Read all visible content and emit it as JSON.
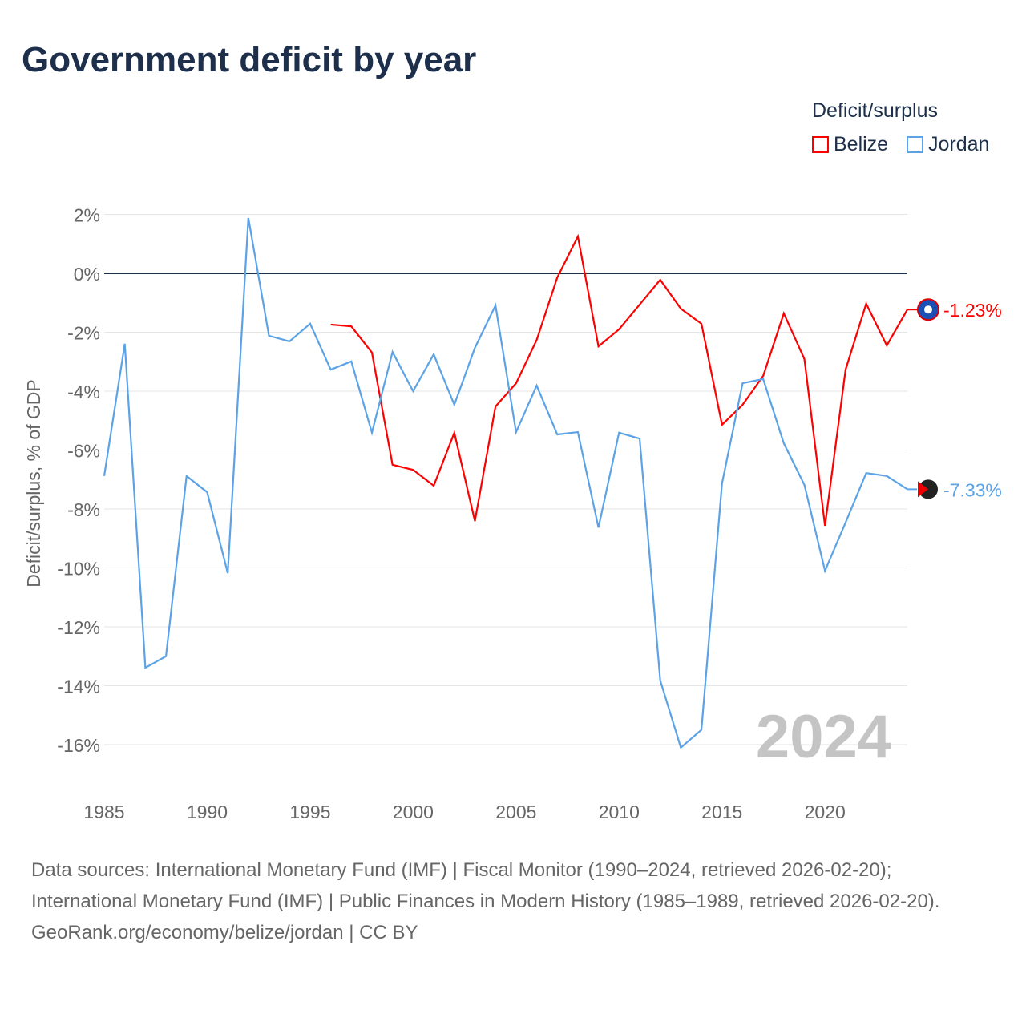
{
  "title": "Government deficit by year",
  "legend": {
    "title": "Deficit/surplus",
    "items": [
      {
        "name": "Belize",
        "color": "#ff0000"
      },
      {
        "name": "Jordan",
        "color": "#5ba3e6"
      }
    ]
  },
  "watermark_year": "2024",
  "footer": {
    "sources": "Data sources: International Monetary Fund (IMF) | Fiscal Monitor (1990–2024, retrieved 2026-02-20); International Monetary Fund (IMF) | Public Finances in Modern History (1985–1989, retrieved 2026-02-20).",
    "credit": "GeoRank.org/economy/belize/jordan | CC BY"
  },
  "chart_data": {
    "type": "line",
    "title": "Government deficit by year",
    "xlabel": "",
    "ylabel": "Deficit/surplus, % of GDP",
    "xlim": [
      1985,
      2024
    ],
    "ylim": [
      -16,
      2
    ],
    "x_ticks": [
      "1985",
      "1990",
      "1995",
      "2000",
      "2005",
      "2010",
      "2015",
      "2020"
    ],
    "y_ticks": [
      "2%",
      "0%",
      "-2%",
      "-4%",
      "-6%",
      "-8%",
      "-10%",
      "-12%",
      "-14%",
      "-16%"
    ],
    "grid": true,
    "legend_position": "top-right",
    "series": [
      {
        "name": "Belize",
        "color": "#ff0000",
        "end_label": "-1.23%",
        "x": [
          1996,
          1997,
          1998,
          1999,
          2000,
          2001,
          2002,
          2003,
          2004,
          2005,
          2006,
          2007,
          2008,
          2009,
          2010,
          2011,
          2012,
          2013,
          2014,
          2015,
          2016,
          2017,
          2018,
          2019,
          2020,
          2021,
          2022,
          2023,
          2024
        ],
        "values": [
          -1.74,
          -1.8,
          -2.69,
          -6.5,
          -6.67,
          -7.21,
          -5.41,
          -8.41,
          -4.52,
          -3.73,
          -2.26,
          -0.14,
          1.25,
          -2.48,
          -1.9,
          -1.06,
          -0.22,
          -1.2,
          -1.71,
          -5.14,
          -4.46,
          -3.48,
          -1.36,
          -2.91,
          -8.57,
          -3.27,
          -1.03,
          -2.45,
          -1.23
        ]
      },
      {
        "name": "Jordan",
        "color": "#5ba3e6",
        "end_label": "-7.33%",
        "x": [
          1985,
          1986,
          1987,
          1988,
          1989,
          1990,
          1991,
          1992,
          1993,
          1994,
          1995,
          1996,
          1997,
          1998,
          1999,
          2000,
          2001,
          2002,
          2003,
          2004,
          2005,
          2006,
          2007,
          2008,
          2009,
          2010,
          2011,
          2012,
          2013,
          2014,
          2015,
          2016,
          2017,
          2018,
          2019,
          2020,
          2021,
          2022,
          2023,
          2024
        ],
        "values": [
          -6.88,
          -2.39,
          -13.39,
          -13.0,
          -6.88,
          -7.43,
          -10.18,
          1.88,
          -2.12,
          -2.31,
          -1.71,
          -3.27,
          -2.99,
          -5.41,
          -2.67,
          -4.0,
          -2.75,
          -4.46,
          -2.53,
          -1.09,
          -5.39,
          -3.81,
          -5.47,
          -5.39,
          -8.63,
          -5.41,
          -5.61,
          -13.82,
          -16.1,
          -15.5,
          -7.13,
          -3.73,
          -3.59,
          -5.77,
          -7.18,
          -10.1,
          -8.46,
          -6.78,
          -6.88,
          -7.33
        ]
      }
    ]
  }
}
